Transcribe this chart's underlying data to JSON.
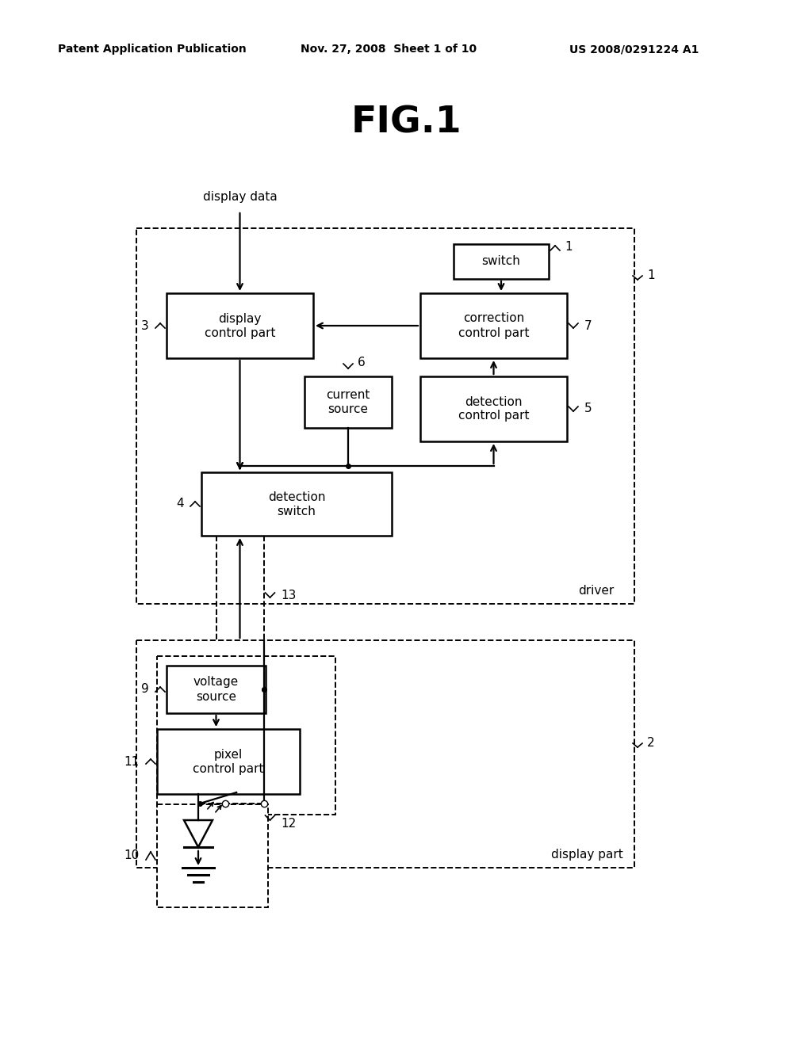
{
  "bg_color": "#ffffff",
  "title": "FIG.1",
  "header_left": "Patent Application Publication",
  "header_mid": "Nov. 27, 2008  Sheet 1 of 10",
  "header_right": "US 2008/0291224 A1",
  "fig_width": 10.24,
  "fig_height": 13.2,
  "dpi": 100
}
